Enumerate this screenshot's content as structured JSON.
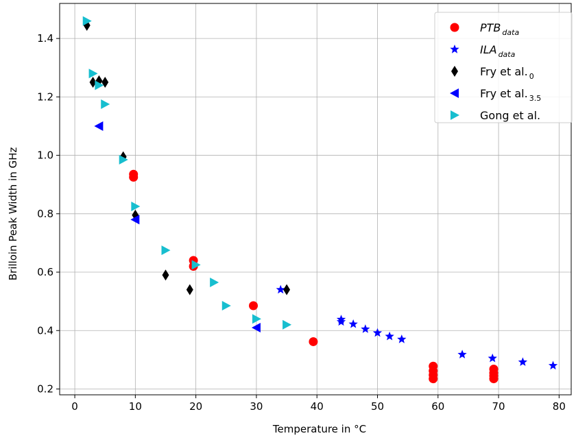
{
  "chart_data": {
    "type": "scatter",
    "xlabel": "Temperature in °C",
    "ylabel": "Brilloin Peak Width in GHz",
    "xlim": [
      -2.5,
      82
    ],
    "ylim": [
      0.18,
      1.52
    ],
    "xticks": [
      0,
      10,
      20,
      30,
      40,
      50,
      60,
      70,
      80
    ],
    "yticks": [
      0.2,
      0.4,
      0.6,
      0.8,
      1.0,
      1.2,
      1.4
    ],
    "xtick_labels": [
      "0",
      "10",
      "20",
      "30",
      "40",
      "50",
      "60",
      "70",
      "80"
    ],
    "ytick_labels": [
      "0.2",
      "0.4",
      "0.6",
      "0.8",
      "1.0",
      "1.2",
      "1.4"
    ],
    "grid": true,
    "legend_position": "top-right",
    "series": [
      {
        "name_main": "PTB",
        "name_sub": "data",
        "marker": "circle",
        "color": "#ff0000",
        "points": [
          [
            9.7,
            0.935
          ],
          [
            9.7,
            0.925
          ],
          [
            19.6,
            0.64
          ],
          [
            19.6,
            0.62
          ],
          [
            29.5,
            0.485
          ],
          [
            39.4,
            0.362
          ],
          [
            59.2,
            0.278
          ],
          [
            59.2,
            0.262
          ],
          [
            59.2,
            0.248
          ],
          [
            59.2,
            0.235
          ],
          [
            69.2,
            0.268
          ],
          [
            69.2,
            0.255
          ],
          [
            69.2,
            0.245
          ],
          [
            69.2,
            0.235
          ]
        ]
      },
      {
        "name_main": "ILA",
        "name_sub": "data",
        "marker": "star",
        "color": "#0000ff",
        "points": [
          [
            34.0,
            0.54
          ],
          [
            44.0,
            0.438
          ],
          [
            44.0,
            0.43
          ],
          [
            46.0,
            0.422
          ],
          [
            48.0,
            0.405
          ],
          [
            50.0,
            0.392
          ],
          [
            52.0,
            0.38
          ],
          [
            54.0,
            0.37
          ],
          [
            64.0,
            0.318
          ],
          [
            69.0,
            0.305
          ],
          [
            74.0,
            0.292
          ],
          [
            79.0,
            0.28
          ]
        ]
      },
      {
        "name_main": "Fry et al.",
        "name_sub": "0",
        "marker": "diamond",
        "color": "#000000",
        "points": [
          [
            2.0,
            1.445
          ],
          [
            3.0,
            1.25
          ],
          [
            4.0,
            1.255
          ],
          [
            5.0,
            1.25
          ],
          [
            8.0,
            0.995
          ],
          [
            10.0,
            0.795
          ],
          [
            15.0,
            0.59
          ],
          [
            19.0,
            0.54
          ],
          [
            35.0,
            0.54
          ]
        ]
      },
      {
        "name_main": "Fry et al.",
        "name_sub": "3.5",
        "marker": "triangle-left",
        "color": "#0000ff",
        "points": [
          [
            4.0,
            1.1
          ],
          [
            10.0,
            0.78
          ],
          [
            30.0,
            0.41
          ]
        ]
      },
      {
        "name_main": "Gong et al.",
        "name_sub": "",
        "marker": "triangle-right",
        "color": "#17becf",
        "points": [
          [
            2.0,
            1.46
          ],
          [
            3.0,
            1.28
          ],
          [
            4.0,
            1.24
          ],
          [
            5.0,
            1.175
          ],
          [
            8.0,
            0.985
          ],
          [
            10.0,
            0.825
          ],
          [
            15.0,
            0.675
          ],
          [
            20.0,
            0.625
          ],
          [
            23.0,
            0.565
          ],
          [
            25.0,
            0.485
          ],
          [
            30.0,
            0.44
          ],
          [
            35.0,
            0.42
          ]
        ]
      }
    ]
  }
}
